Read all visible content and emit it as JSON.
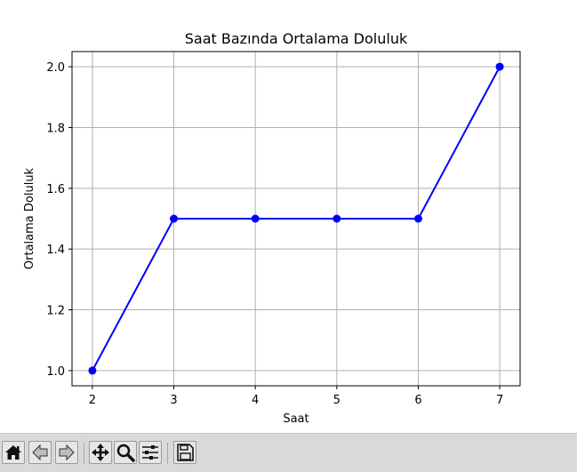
{
  "window": {
    "toolbar": {
      "buttons": [
        {
          "name": "home",
          "icon": "home-icon"
        },
        {
          "name": "back",
          "icon": "arrow-left-icon"
        },
        {
          "name": "forward",
          "icon": "arrow-right-icon"
        },
        {
          "name": "pan",
          "icon": "move-icon"
        },
        {
          "name": "zoom",
          "icon": "magnifier-icon"
        },
        {
          "name": "configure-subplots",
          "icon": "sliders-icon"
        },
        {
          "name": "save",
          "icon": "floppy-disk-icon"
        }
      ]
    }
  },
  "chart_data": {
    "type": "line",
    "title": "Saat Bazında Ortalama Doluluk",
    "xlabel": "Saat",
    "ylabel": "Ortalama Doluluk",
    "x": [
      2,
      3,
      4,
      5,
      6,
      7
    ],
    "series": [
      {
        "values": [
          1.0,
          1.5,
          1.5,
          1.5,
          1.5,
          2.0
        ],
        "color": "#0000ff",
        "marker": "circle"
      }
    ],
    "xticks": [
      "2",
      "3",
      "4",
      "5",
      "6",
      "7"
    ],
    "yticks": [
      "1.0",
      "1.2",
      "1.4",
      "1.6",
      "1.8",
      "2.0"
    ],
    "xlim": [
      1.75,
      7.25
    ],
    "ylim": [
      0.95,
      2.05
    ],
    "grid": true
  }
}
